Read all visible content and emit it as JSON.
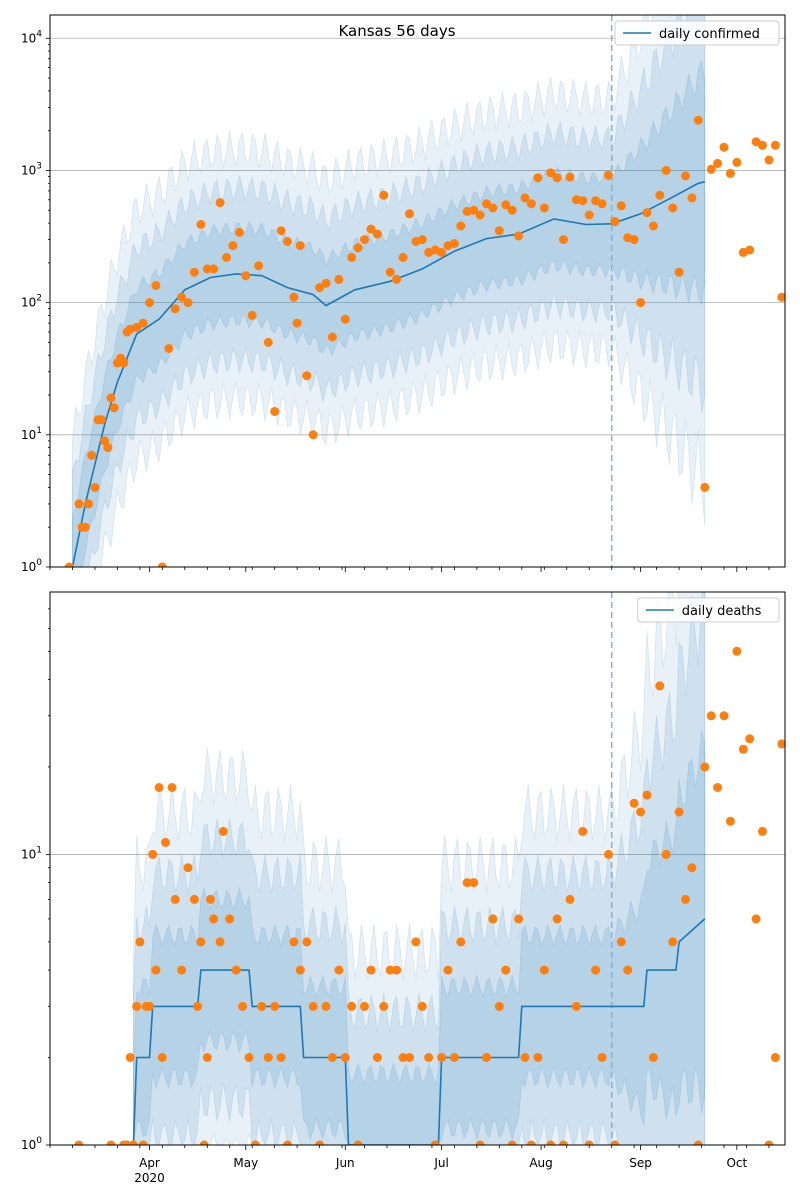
{
  "colors": {
    "line": "#1f77b4",
    "band": "#1f77b4",
    "points": "#ff7f0e",
    "vline": "#7fb2d8",
    "grid": "#b0b0b0"
  },
  "x_axis": {
    "month_labels": [
      "Apr",
      "May",
      "Jun",
      "Jul",
      "Aug",
      "Sep",
      "Oct"
    ],
    "year_label": "2020"
  },
  "chart_data": [
    {
      "type": "line",
      "title": "Kansas 56 days",
      "x_scale": "date",
      "y_scale": "log",
      "xlim": [
        "2020-03-01",
        "2020-10-16"
      ],
      "ylim": [
        1,
        15000
      ],
      "y_tick_labels": [
        "10^0",
        "10^1",
        "10^2",
        "10^3",
        "10^4"
      ],
      "grid": true,
      "legend_position": "top-right",
      "vertical_marker_date": "2020-08-23",
      "forecast_end_date": "2020-09-21",
      "series": [
        {
          "name": "daily confirmed",
          "kind": "model median line",
          "x": [
            "2020-03-08",
            "2020-03-12",
            "2020-03-18",
            "2020-03-22",
            "2020-03-28",
            "2020-04-04",
            "2020-04-12",
            "2020-04-20",
            "2020-04-28",
            "2020-05-06",
            "2020-05-14",
            "2020-05-22",
            "2020-05-26",
            "2020-06-04",
            "2020-06-15",
            "2020-06-25",
            "2020-07-05",
            "2020-07-15",
            "2020-07-25",
            "2020-08-05",
            "2020-08-15",
            "2020-08-23",
            "2020-09-01",
            "2020-09-10",
            "2020-09-19",
            "2020-09-21"
          ],
          "values": [
            1,
            3,
            12,
            25,
            58,
            75,
            125,
            155,
            165,
            160,
            130,
            115,
            95,
            125,
            145,
            180,
            245,
            305,
            330,
            430,
            390,
            395,
            470,
            610,
            800,
            820
          ]
        },
        {
          "name": "",
          "kind": "observed daily confirmed",
          "x": [
            "2020-03-07",
            "2020-03-10",
            "2020-03-11",
            "2020-03-12",
            "2020-03-13",
            "2020-03-14",
            "2020-03-15",
            "2020-03-16",
            "2020-03-17",
            "2020-03-18",
            "2020-03-19",
            "2020-03-20",
            "2020-03-21",
            "2020-03-22",
            "2020-03-23",
            "2020-03-24",
            "2020-03-25",
            "2020-03-26",
            "2020-03-28",
            "2020-03-30",
            "2020-04-01",
            "2020-04-03",
            "2020-04-05",
            "2020-04-07",
            "2020-04-09",
            "2020-04-11",
            "2020-04-13",
            "2020-04-15",
            "2020-04-17",
            "2020-04-19",
            "2020-04-21",
            "2020-04-23",
            "2020-04-25",
            "2020-04-27",
            "2020-04-29",
            "2020-05-01",
            "2020-05-03",
            "2020-05-05",
            "2020-05-08",
            "2020-05-10",
            "2020-05-12",
            "2020-05-14",
            "2020-05-16",
            "2020-05-17",
            "2020-05-18",
            "2020-05-20",
            "2020-05-22",
            "2020-05-24",
            "2020-05-26",
            "2020-05-28",
            "2020-05-30",
            "2020-06-01",
            "2020-06-03",
            "2020-06-05",
            "2020-06-07",
            "2020-06-09",
            "2020-06-11",
            "2020-06-13",
            "2020-06-15",
            "2020-06-17",
            "2020-06-19",
            "2020-06-21",
            "2020-06-23",
            "2020-06-25",
            "2020-06-27",
            "2020-06-29",
            "2020-07-01",
            "2020-07-03",
            "2020-07-05",
            "2020-07-07",
            "2020-07-09",
            "2020-07-11",
            "2020-07-13",
            "2020-07-15",
            "2020-07-17",
            "2020-07-19",
            "2020-07-21",
            "2020-07-23",
            "2020-07-25",
            "2020-07-27",
            "2020-07-29",
            "2020-07-31",
            "2020-08-02",
            "2020-08-04",
            "2020-08-06",
            "2020-08-08",
            "2020-08-10",
            "2020-08-12",
            "2020-08-14",
            "2020-08-16",
            "2020-08-18",
            "2020-08-20",
            "2020-08-22",
            "2020-08-24",
            "2020-08-26",
            "2020-08-28",
            "2020-08-30",
            "2020-09-01",
            "2020-09-03",
            "2020-09-05",
            "2020-09-07",
            "2020-09-09",
            "2020-09-11",
            "2020-09-13",
            "2020-09-15",
            "2020-09-17",
            "2020-09-19",
            "2020-09-21",
            "2020-09-23",
            "2020-09-25",
            "2020-09-27",
            "2020-09-29",
            "2020-10-01",
            "2020-10-03",
            "2020-10-05",
            "2020-10-07",
            "2020-10-09",
            "2020-10-11",
            "2020-10-13",
            "2020-10-15"
          ],
          "values": [
            1,
            3,
            2,
            2,
            3,
            7,
            4,
            13,
            13,
            9,
            8,
            19,
            16,
            35,
            38,
            35,
            60,
            63,
            65,
            70,
            100,
            135,
            1,
            45,
            90,
            110,
            100,
            170,
            390,
            180,
            180,
            570,
            220,
            270,
            340,
            160,
            80,
            190,
            50,
            15,
            350,
            290,
            110,
            70,
            270,
            28,
            10,
            130,
            140,
            55,
            150,
            75,
            220,
            260,
            300,
            360,
            330,
            650,
            170,
            150,
            220,
            470,
            290,
            300,
            240,
            250,
            240,
            270,
            280,
            380,
            490,
            500,
            460,
            560,
            520,
            350,
            550,
            500,
            320,
            620,
            560,
            880,
            520,
            960,
            880,
            300,
            890,
            600,
            590,
            460,
            590,
            560,
            920,
            410,
            540,
            310,
            300,
            100,
            480,
            380,
            650,
            1000,
            520,
            170,
            910,
            620,
            2400,
            4,
            1020,
            1130,
            1500,
            950,
            1150,
            240,
            250,
            1650,
            1550,
            1200,
            1550,
            110
          ]
        }
      ]
    },
    {
      "type": "line",
      "title": "",
      "x_scale": "date",
      "y_scale": "log",
      "xlim": [
        "2020-03-01",
        "2020-10-16"
      ],
      "ylim": [
        1,
        80
      ],
      "y_tick_labels": [
        "10^0",
        "10^1"
      ],
      "grid": true,
      "legend_position": "top-right",
      "vertical_marker_date": "2020-08-23",
      "forecast_end_date": "2020-09-21",
      "series": [
        {
          "name": "daily deaths",
          "kind": "model median line",
          "x": [
            "2020-03-27",
            "2020-03-28",
            "2020-04-01",
            "2020-04-02",
            "2020-04-16",
            "2020-04-17",
            "2020-05-02",
            "2020-05-03",
            "2020-05-07",
            "2020-05-08",
            "2020-05-18",
            "2020-05-19",
            "2020-06-01",
            "2020-06-02",
            "2020-06-30",
            "2020-07-01",
            "2020-07-25",
            "2020-07-26",
            "2020-08-23",
            "2020-08-24",
            "2020-09-02",
            "2020-09-03",
            "2020-09-12",
            "2020-09-13",
            "2020-09-21"
          ],
          "values": [
            1,
            2,
            2,
            3,
            3,
            4,
            4,
            3,
            3,
            3,
            3,
            2,
            2,
            1,
            1,
            2,
            2,
            3,
            3,
            3,
            3,
            4,
            4,
            5,
            6
          ]
        },
        {
          "name": "",
          "kind": "observed daily deaths",
          "x": [
            "2020-03-10",
            "2020-03-20",
            "2020-03-24",
            "2020-03-25",
            "2020-03-26",
            "2020-03-27",
            "2020-03-28",
            "2020-03-29",
            "2020-03-30",
            "2020-03-31",
            "2020-04-01",
            "2020-04-02",
            "2020-04-03",
            "2020-04-04",
            "2020-04-05",
            "2020-04-06",
            "2020-04-08",
            "2020-04-09",
            "2020-04-11",
            "2020-04-13",
            "2020-04-15",
            "2020-04-16",
            "2020-04-17",
            "2020-04-18",
            "2020-04-19",
            "2020-04-20",
            "2020-04-21",
            "2020-04-23",
            "2020-04-24",
            "2020-04-26",
            "2020-04-28",
            "2020-04-30",
            "2020-05-02",
            "2020-05-04",
            "2020-05-06",
            "2020-05-08",
            "2020-05-10",
            "2020-05-12",
            "2020-05-14",
            "2020-05-16",
            "2020-05-18",
            "2020-05-20",
            "2020-05-22",
            "2020-05-24",
            "2020-05-26",
            "2020-05-28",
            "2020-05-30",
            "2020-06-01",
            "2020-06-03",
            "2020-06-05",
            "2020-06-07",
            "2020-06-09",
            "2020-06-11",
            "2020-06-13",
            "2020-06-15",
            "2020-06-17",
            "2020-06-19",
            "2020-06-21",
            "2020-06-23",
            "2020-06-25",
            "2020-06-27",
            "2020-06-29",
            "2020-07-01",
            "2020-07-03",
            "2020-07-05",
            "2020-07-07",
            "2020-07-09",
            "2020-07-11",
            "2020-07-13",
            "2020-07-15",
            "2020-07-17",
            "2020-07-19",
            "2020-07-21",
            "2020-07-23",
            "2020-07-25",
            "2020-07-27",
            "2020-07-29",
            "2020-07-31",
            "2020-08-02",
            "2020-08-04",
            "2020-08-06",
            "2020-08-08",
            "2020-08-10",
            "2020-08-12",
            "2020-08-14",
            "2020-08-16",
            "2020-08-18",
            "2020-08-20",
            "2020-08-22",
            "2020-08-24",
            "2020-08-26",
            "2020-08-28",
            "2020-08-30",
            "2020-09-01",
            "2020-09-03",
            "2020-09-05",
            "2020-09-07",
            "2020-09-09",
            "2020-09-11",
            "2020-09-13",
            "2020-09-15",
            "2020-09-17",
            "2020-09-19",
            "2020-09-21",
            "2020-09-23",
            "2020-09-25",
            "2020-09-27",
            "2020-09-29",
            "2020-10-01",
            "2020-10-03",
            "2020-10-05",
            "2020-10-07",
            "2020-10-09",
            "2020-10-11",
            "2020-10-13",
            "2020-10-15"
          ],
          "values": [
            1,
            1,
            1,
            1,
            2,
            1,
            3,
            5,
            1,
            3,
            3,
            10,
            4,
            17,
            2,
            11,
            17,
            7,
            4,
            9,
            7,
            3,
            5,
            1,
            2,
            7,
            6,
            5,
            12,
            6,
            4,
            3,
            2,
            1,
            3,
            2,
            3,
            2,
            1,
            5,
            4,
            5,
            3,
            1,
            3,
            2,
            4,
            2,
            3,
            1,
            3,
            4,
            2,
            3,
            4,
            4,
            2,
            2,
            5,
            3,
            2,
            1,
            2,
            4,
            2,
            5,
            8,
            8,
            1,
            2,
            6,
            3,
            4,
            1,
            6,
            2,
            1,
            2,
            4,
            1,
            6,
            1,
            7,
            3,
            12,
            1,
            4,
            2,
            10,
            1,
            5,
            4,
            15,
            14,
            16,
            2,
            38,
            10,
            5,
            14,
            7,
            9,
            1,
            20,
            30,
            17,
            30,
            13,
            50,
            23,
            25,
            6,
            12,
            1,
            2,
            24
          ]
        }
      ]
    }
  ]
}
